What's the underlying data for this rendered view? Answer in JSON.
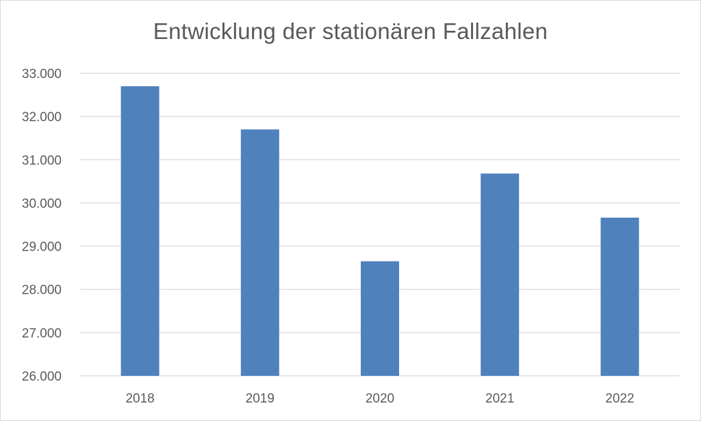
{
  "chart_data": {
    "type": "bar",
    "title": "Entwicklung der stationären Fallzahlen",
    "xlabel": "",
    "ylabel": "",
    "categories": [
      "2018",
      "2019",
      "2020",
      "2021",
      "2022"
    ],
    "values": [
      32700,
      31700,
      28650,
      30680,
      29660
    ],
    "ylim": [
      26000,
      33000
    ],
    "yticks": [
      26000,
      27000,
      28000,
      29000,
      30000,
      31000,
      32000,
      33000
    ],
    "ytick_labels": [
      "26.000",
      "27.000",
      "28.000",
      "29.000",
      "30.000",
      "31.000",
      "32.000",
      "33.000"
    ],
    "grid": true,
    "legend": "none",
    "colors": {
      "bar": "#4f81bd",
      "grid": "#d9d9d9",
      "text": "#595959"
    }
  }
}
